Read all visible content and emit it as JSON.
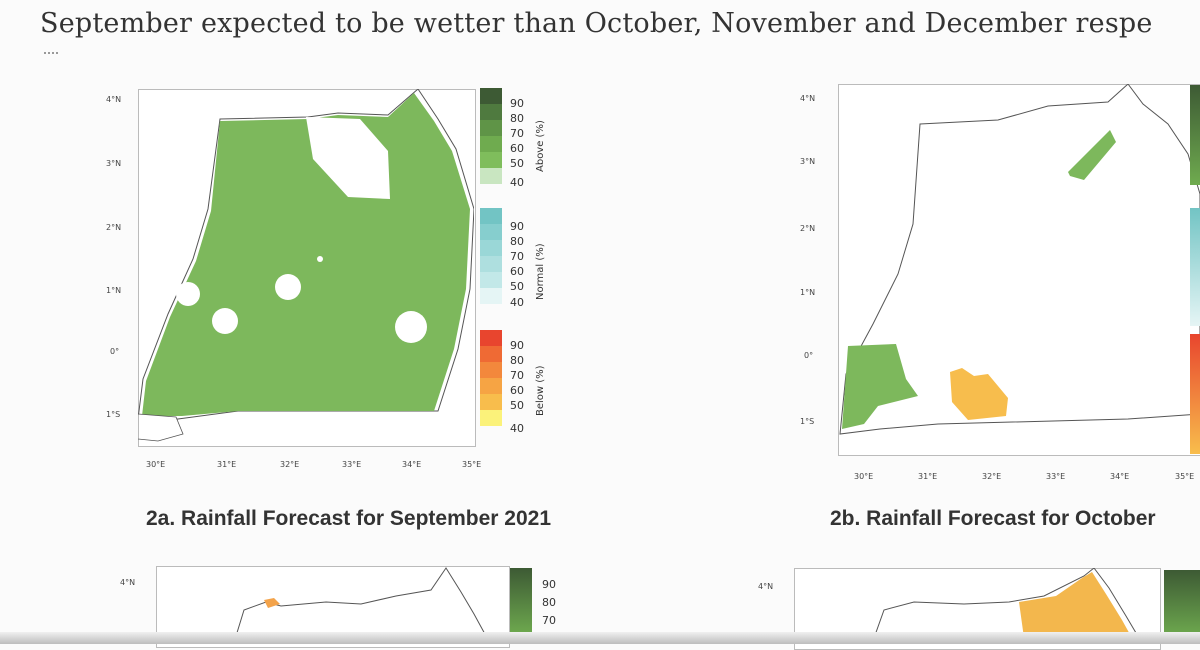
{
  "document": {
    "top_line": "September expected to be wetter than October, November and December respe"
  },
  "maps": {
    "a": {
      "caption": "2a. Rainfall Forecast for September 2021",
      "lat_ticks": [
        "4°N",
        "3°N",
        "2°N",
        "1°N",
        "0°",
        "1°S"
      ],
      "lon_ticks": [
        "30°E",
        "31°E",
        "32°E",
        "33°E",
        "34°E",
        "35°E"
      ]
    },
    "b": {
      "caption": "2b. Rainfall Forecast for October",
      "lat_ticks": [
        "4°N",
        "3°N",
        "2°N",
        "1°N",
        "0°",
        "1°S"
      ],
      "lon_ticks": [
        "30°E",
        "31°E",
        "32°E",
        "33°E",
        "34°E",
        "35°E"
      ]
    },
    "c": {
      "lat_ticks": [
        "4°N"
      ]
    },
    "d": {
      "lat_ticks": [
        "4°N"
      ]
    }
  },
  "legend": {
    "above_title": "Above (%)",
    "normal_title": "Normal (%)",
    "below_title": "Below (%)",
    "levels": [
      "90",
      "80",
      "70",
      "60",
      "50",
      "40"
    ],
    "colors": {
      "above": [
        "#3d5a34",
        "#4f7a3f",
        "#5f9447",
        "#6fab4f",
        "#7fbd5c",
        "#c9e6c1"
      ],
      "normal": [
        "#72c4c4",
        "#86cece",
        "#9ad7d7",
        "#aedfdf",
        "#c2e8e8",
        "#e5f5f5"
      ],
      "below": [
        "#e8452e",
        "#ef6a34",
        "#f3883c",
        "#f6a444",
        "#f8bd4c",
        "#fbf27a"
      ]
    }
  }
}
